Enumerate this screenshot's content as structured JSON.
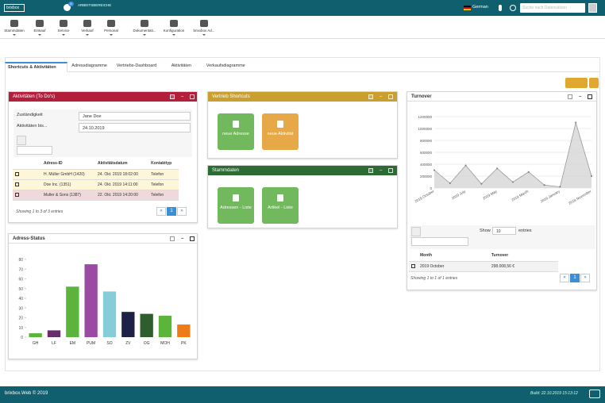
{
  "header": {
    "logo": "brixbox",
    "badge": "6",
    "workspaces": "ARBEITSBEREICHE",
    "language": "German",
    "search_placeholder": "Suche nach Datensätzen"
  },
  "toolbar": [
    "Stammdaten",
    "Einkauf",
    "Service",
    "Verkauf",
    "Personal",
    "Dokumentati...",
    "Konfiguration",
    "brixxbox Ad..."
  ],
  "tabs": [
    "Shortcuts & Aktivitäten",
    "Adressdiagramme",
    "Vertriebs-Dashboard",
    "Aktivitäten",
    "Verkaufsdiagramme"
  ],
  "activities": {
    "title": "Aktivitäten (To Do's)",
    "responsible_label": "Zuständigkeit",
    "responsible": "Jane Doe",
    "until_label": "Aktivitäten bis...",
    "until": "24.10.2019",
    "columns": [
      "Adress-ID",
      "Aktivitätsdatum",
      "Kontakttyp"
    ],
    "rows": [
      [
        "H. Müller GmbH (1420)",
        "24. Okt. 2019 18:02:00",
        "Telefon"
      ],
      [
        "Doe Inc. (1351)",
        "24. Okt. 2019 14:11:00",
        "Telefon"
      ],
      [
        "Muller & Sons (1387)",
        "22. Okt. 2019 14:20:00",
        "Telefon"
      ]
    ],
    "info": "Showing 1 to 3 of 3 entries",
    "pages": [
      "«",
      "1",
      "»"
    ]
  },
  "sales_shortcuts": {
    "title": "Vertrieb Shortcuts",
    "buttons": [
      "neue Adresse",
      "neue Aktivität"
    ]
  },
  "master_data": {
    "title": "Stammdaten",
    "buttons": [
      "Adressen - Liste",
      "Artikel - Liste"
    ]
  },
  "address_status": {
    "title": "Adress-Status"
  },
  "turnover": {
    "title": "Turnover",
    "show_label": "Show",
    "page_size": "10",
    "entries_label": "entries",
    "columns": [
      "Month",
      "Turnover"
    ],
    "rows": [
      [
        "2019 October",
        "298.008,56 €"
      ]
    ],
    "info": "Showing 1 to 1 of 1 entries",
    "pages": [
      "«",
      "1",
      "»"
    ]
  },
  "footer": {
    "copyright": "brixbox.Web © 2019",
    "build": "Build: 22.10.2019 15:13:12"
  },
  "chart_data": [
    {
      "type": "bar",
      "categories": [
        "GH",
        "LF",
        "EM",
        "PUM",
        "SO",
        "ZV",
        "OG",
        "MOH",
        "PK"
      ],
      "values": [
        4,
        7,
        52,
        75,
        47,
        26,
        24,
        22,
        13
      ],
      "colors": [
        "#5ab53a",
        "#6a2a6e",
        "#5ab53a",
        "#9b4aa3",
        "#86cdd9",
        "#1e2048",
        "#2e5e2e",
        "#5ab53a",
        "#ee7a18"
      ],
      "ylim": [
        0,
        80
      ],
      "yticks": [
        0,
        10,
        20,
        30,
        40,
        50,
        60,
        70,
        80
      ],
      "grid": false
    },
    {
      "type": "line",
      "categories": [
        "2019 October",
        null,
        "2019 July",
        null,
        "2019 May",
        null,
        "2019 March",
        null,
        "2019 January",
        null,
        "2018 November"
      ],
      "values": [
        300000,
        80000,
        380000,
        70000,
        330000,
        100000,
        270000,
        50000,
        20000,
        1100000,
        200000
      ],
      "color": "#999999",
      "fill": "#d6d6d6",
      "ylim": [
        0,
        1200000
      ],
      "yticks": [
        0,
        200000,
        400000,
        600000,
        800000,
        1000000,
        1200000
      ],
      "grid": true
    }
  ]
}
